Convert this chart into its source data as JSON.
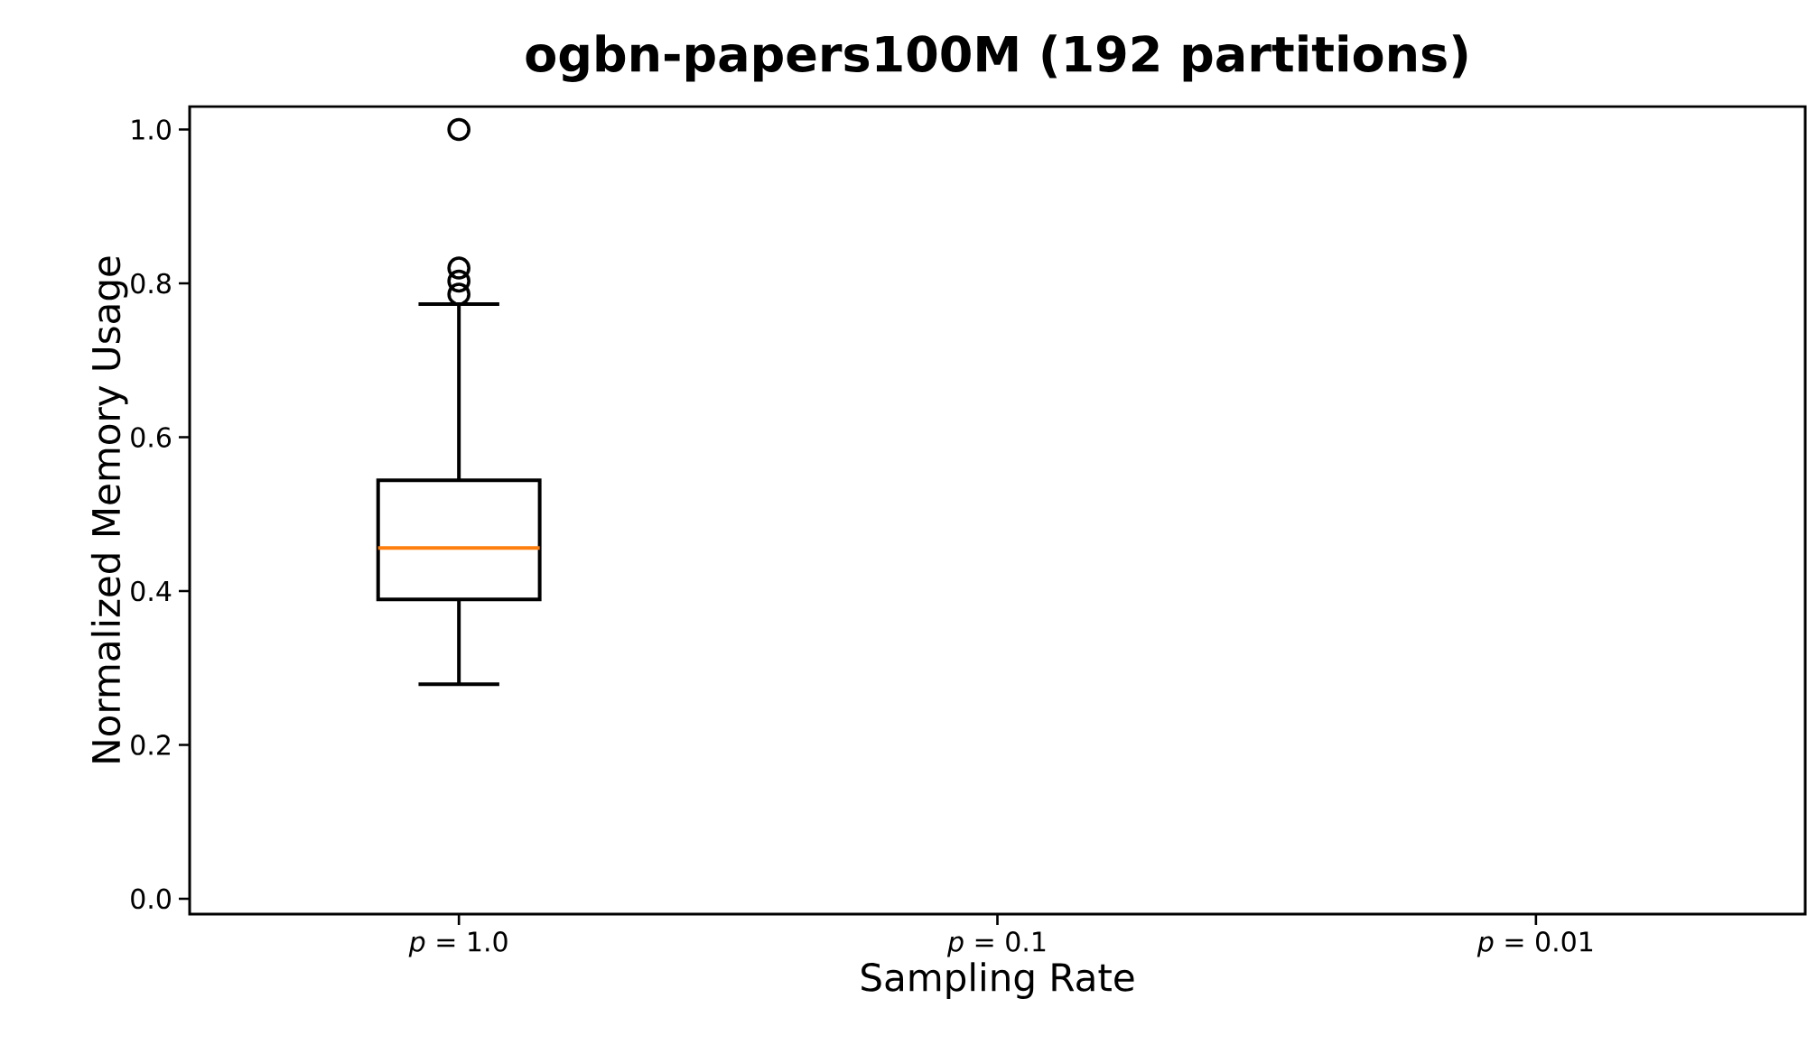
{
  "chart_data": {
    "type": "box",
    "title": "ogbn-papers100M (192 partitions)",
    "xlabel": "Sampling Rate",
    "ylabel": "Normalized Memory Usage",
    "categories": [
      "*p* = 1.0",
      "*p* = 0.1",
      "*p* = 0.01"
    ],
    "boxes": [
      {
        "low": 0.279,
        "q1": 0.389,
        "median": 0.456,
        "q3": 0.544,
        "high": 0.773,
        "outliers": [
          0.786,
          0.803,
          0.82,
          1.0
        ]
      },
      null,
      null
    ],
    "ylim": [
      -0.02,
      1.03
    ],
    "yticks": [
      {
        "value": 0,
        "label": "0.0"
      },
      {
        "value": 0.2,
        "label": "0.2"
      },
      {
        "value": 0.4,
        "label": "0.4"
      },
      {
        "value": 0.6,
        "label": "0.6"
      },
      {
        "value": 0.8,
        "label": "0.8"
      },
      {
        "value": 1,
        "label": "1.0"
      }
    ]
  }
}
